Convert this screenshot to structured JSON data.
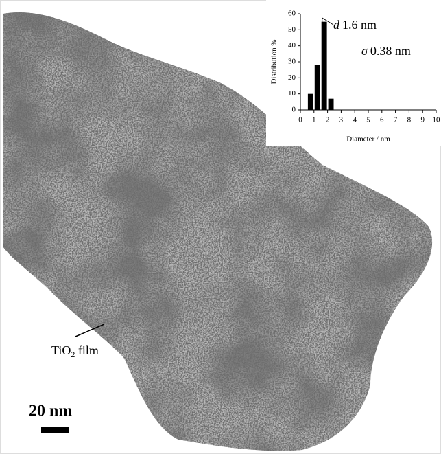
{
  "chart_data": {
    "type": "bar",
    "x": [
      0.75,
      1.25,
      1.75,
      2.25
    ],
    "values": [
      10,
      28,
      55,
      7
    ],
    "color": "#000000",
    "xlim": [
      0,
      10
    ],
    "xticks": [
      0,
      1,
      2,
      3,
      4,
      5,
      6,
      7,
      8,
      9,
      10
    ],
    "ylim": [
      0,
      60
    ],
    "yticks": [
      0,
      10,
      20,
      30,
      40,
      50,
      60
    ],
    "xlabel": "Diameter / nm",
    "ylabel": "Distribution %",
    "annotations": [
      {
        "symbol": "d",
        "text": "1.6 nm"
      },
      {
        "symbol": "σ",
        "text": "0.38 nm"
      }
    ]
  },
  "image_labels": {
    "film": {
      "main": "TiO",
      "sub": "2",
      "rest": " film"
    },
    "scale_bar": "20 nm"
  }
}
